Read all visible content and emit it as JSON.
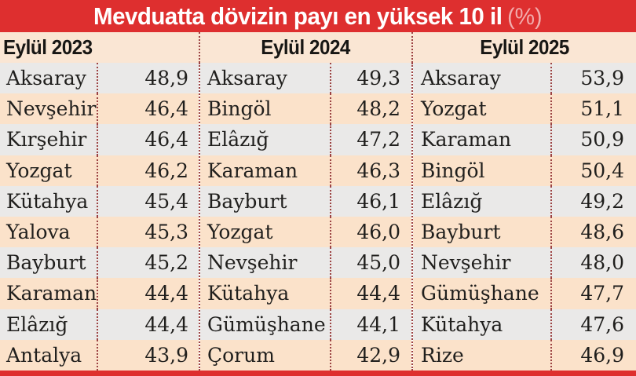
{
  "colors": {
    "header_red": "#de2f2f",
    "title_unit_pink": "#f2adad",
    "dotted_separator": "#9c4343",
    "row_gray": "#eae9e8",
    "row_peach": "#fbe2ca",
    "header_row_peach": "#fae6d4",
    "text_ink": "#201f1d"
  },
  "chart_data": {
    "type": "table",
    "title": "Mevduatta dövizin payı en yüksek 10 il",
    "unit": "(%)",
    "columns": [
      {
        "header": "Eylül 2023",
        "rows": [
          {
            "city": "Aksaray",
            "value": "48,9"
          },
          {
            "city": "Nevşehir",
            "value": "46,4"
          },
          {
            "city": "Kırşehir",
            "value": "46,4"
          },
          {
            "city": "Yozgat",
            "value": "46,2"
          },
          {
            "city": "Kütahya",
            "value": "45,4"
          },
          {
            "city": "Yalova",
            "value": "45,3"
          },
          {
            "city": "Bayburt",
            "value": "45,2"
          },
          {
            "city": "Karaman",
            "value": "44,4"
          },
          {
            "city": "Elâzığ",
            "value": "44,4"
          },
          {
            "city": "Antalya",
            "value": "43,9"
          }
        ]
      },
      {
        "header": "Eylül 2024",
        "rows": [
          {
            "city": "Aksaray",
            "value": "49,3"
          },
          {
            "city": "Bingöl",
            "value": "48,2"
          },
          {
            "city": "Elâzığ",
            "value": "47,2"
          },
          {
            "city": "Karaman",
            "value": "46,3"
          },
          {
            "city": "Bayburt",
            "value": "46,1"
          },
          {
            "city": "Yozgat",
            "value": "46,0"
          },
          {
            "city": "Nevşehir",
            "value": "45,0"
          },
          {
            "city": "Kütahya",
            "value": "44,4"
          },
          {
            "city": "Gümüşhane",
            "value": "44,1"
          },
          {
            "city": "Çorum",
            "value": "42,9"
          }
        ]
      },
      {
        "header": "Eylül 2025",
        "rows": [
          {
            "city": "Aksaray",
            "value": "53,9"
          },
          {
            "city": "Yozgat",
            "value": "51,1"
          },
          {
            "city": "Karaman",
            "value": "50,9"
          },
          {
            "city": "Bingöl",
            "value": "50,4"
          },
          {
            "city": "Elâzığ",
            "value": "49,2"
          },
          {
            "city": "Bayburt",
            "value": "48,6"
          },
          {
            "city": "Nevşehir",
            "value": "48,0"
          },
          {
            "city": "Gümüşhane",
            "value": "47,7"
          },
          {
            "city": "Kütahya",
            "value": "47,6"
          },
          {
            "city": "Rize",
            "value": "46,9"
          }
        ]
      }
    ]
  }
}
